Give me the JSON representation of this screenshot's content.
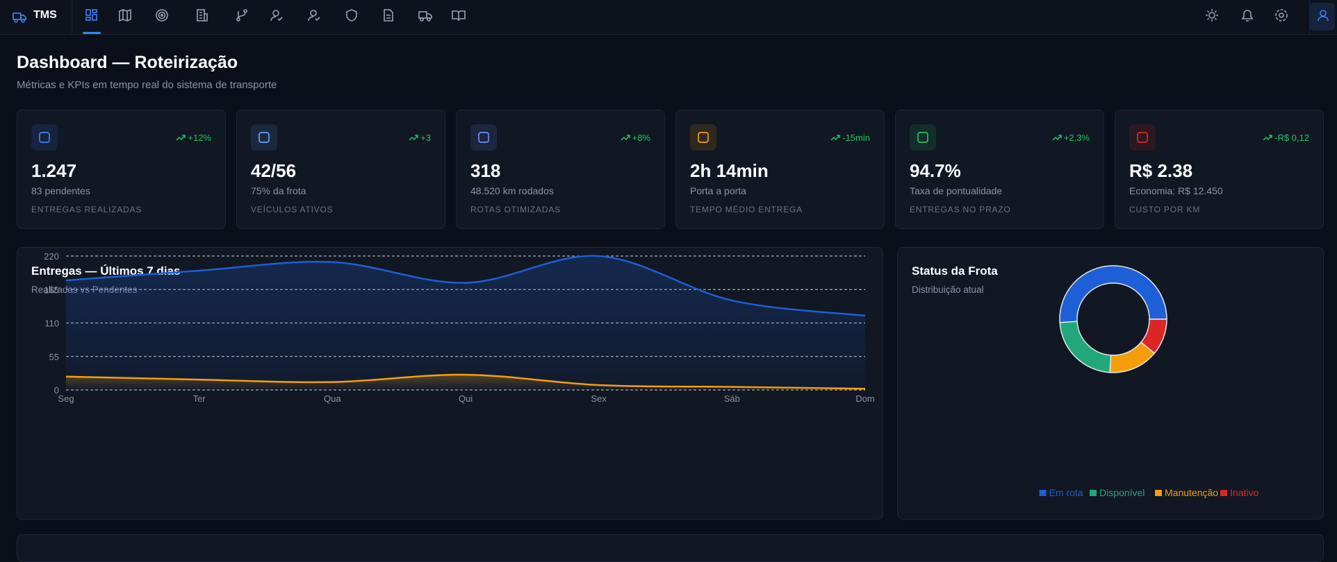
{
  "nav": {
    "brand": "TMS"
  },
  "header": {
    "title": "Dashboard — Roteirização",
    "subtitle": "Métricas e KPIs em tempo real do sistema de transporte"
  },
  "kpis": [
    {
      "value": "1.247",
      "detail": "83 pendentes",
      "label": "ENTREGAS REALIZADAS",
      "trend": "+12%",
      "color": "#3b82f6"
    },
    {
      "value": "42/56",
      "detail": "75% da frota",
      "label": "VEÍCULOS ATIVOS",
      "trend": "+3",
      "color": "#60a5fa"
    },
    {
      "value": "318",
      "detail": "48.520 km rodados",
      "label": "ROTAS OTIMIZADAS",
      "trend": "+8%",
      "color": "#6b8cf5"
    },
    {
      "value": "2h 14min",
      "detail": "Porta a porta",
      "label": "TEMPO MÉDIO ENTREGA",
      "trend": "-15min",
      "color": "#f59e0b"
    },
    {
      "value": "94.7%",
      "detail": "Taxa de pontualidade",
      "label": "ENTREGAS NO PRAZO",
      "trend": "+2.3%",
      "color": "#22c55e"
    },
    {
      "value": "R$ 2.38",
      "detail": "Economia: R$ 12.450",
      "label": "CUSTO POR KM",
      "trend": "-R$ 0,12",
      "color": "#dc2626"
    }
  ],
  "chart_data": [
    {
      "type": "line",
      "title": "Entregas — Últimos 7 dias",
      "subtitle": "Realizadas vs Pendentes",
      "categories": [
        "Seg",
        "Ter",
        "Qua",
        "Qui",
        "Sex",
        "Sáb",
        "Dom"
      ],
      "series": [
        {
          "color": "#1d5fd6",
          "values": [
            180,
            196,
            210,
            176,
            220,
            147,
            122
          ]
        },
        {
          "color": "#f59e0b",
          "values": [
            22,
            17,
            13,
            25,
            8,
            5,
            2
          ]
        }
      ],
      "ylim": [
        0,
        220
      ],
      "yticks": [
        0,
        55,
        110,
        165,
        220
      ],
      "grid": true,
      "area": true
    },
    {
      "type": "pie",
      "title": "Status da Frota",
      "subtitle": "Distribuição atual",
      "categories": [
        "Em rota",
        "Disponível",
        "Manutenção",
        "Inativo"
      ],
      "values": [
        51,
        23,
        15,
        11
      ],
      "colors": [
        "#1d5fd6",
        "#22a77a",
        "#f59e0b",
        "#dc2626"
      ],
      "donut": true
    }
  ]
}
